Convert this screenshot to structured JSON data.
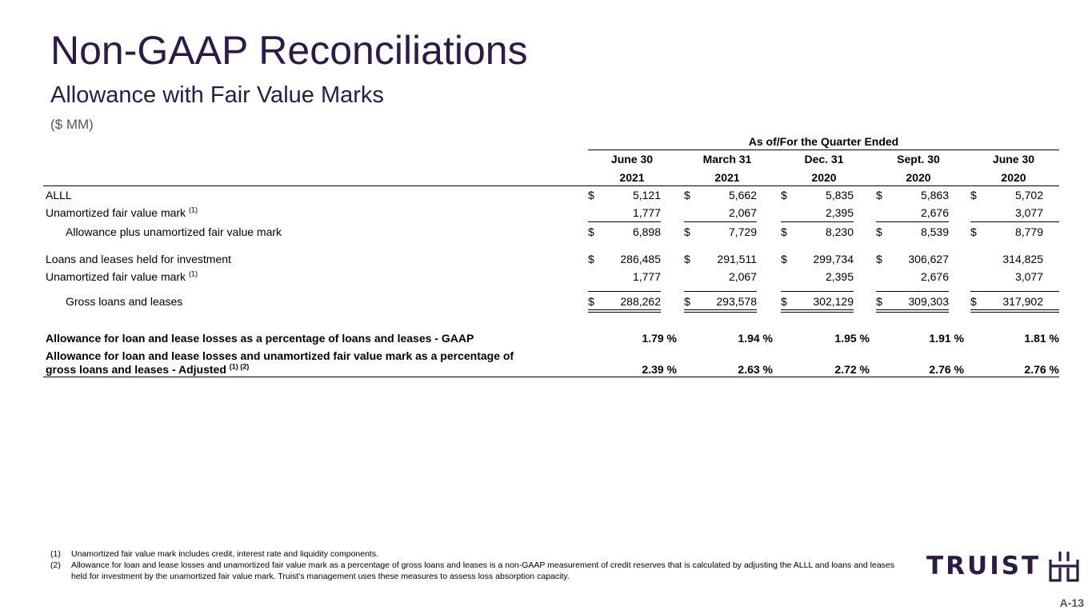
{
  "title": "Non-GAAP Reconciliations",
  "subtitle": "Allowance with Fair Value Marks",
  "units": "($ MM)",
  "table": {
    "group_header": "As of/For the Quarter Ended",
    "columns": [
      {
        "line1": "June 30",
        "line2": "2021"
      },
      {
        "line1": "March 31",
        "line2": "2021"
      },
      {
        "line1": "Dec. 31",
        "line2": "2020"
      },
      {
        "line1": "Sept. 30",
        "line2": "2020"
      },
      {
        "line1": "June 30",
        "line2": "2020"
      }
    ],
    "rows": [
      {
        "label": "ALLL",
        "values": [
          "5,121",
          "5,662",
          "5,835",
          "5,863",
          "5,702"
        ],
        "dollar": [
          true,
          true,
          true,
          true,
          true
        ]
      },
      {
        "label": "Unamortized fair value mark",
        "note": "(1)",
        "values": [
          "1,777",
          "2,067",
          "2,395",
          "2,676",
          "3,077"
        ],
        "dollar": [
          false,
          false,
          false,
          false,
          false
        ]
      },
      {
        "label": "Allowance plus unamortized fair value mark",
        "values": [
          "6,898",
          "7,729",
          "8,230",
          "8,539",
          "8,779"
        ],
        "dollar": [
          true,
          true,
          true,
          true,
          true
        ]
      },
      {
        "label": "Loans and leases held for investment",
        "values": [
          "286,485",
          "291,511",
          "299,734",
          "306,627",
          "314,825"
        ],
        "dollar": [
          true,
          true,
          true,
          true,
          false
        ]
      },
      {
        "label": "Unamortized fair value mark",
        "note": "(1)",
        "values": [
          "1,777",
          "2,067",
          "2,395",
          "2,676",
          "3,077"
        ],
        "dollar": [
          false,
          false,
          false,
          false,
          false
        ]
      },
      {
        "label": "Gross loans and leases",
        "values": [
          "288,262",
          "293,578",
          "302,129",
          "309,303",
          "317,902"
        ],
        "dollar": [
          true,
          true,
          true,
          true,
          true
        ]
      }
    ],
    "dollar_sign": "$",
    "ratio_rows": [
      {
        "label": "Allowance for loan and lease losses as a percentage of loans and leases - GAAP",
        "values": [
          "1.79 %",
          "1.94 %",
          "1.95 %",
          "1.91 %",
          "1.81 %"
        ]
      },
      {
        "label_line1": "Allowance for loan and lease losses and unamortized fair value mark as a percentage of",
        "label_line2": "gross loans and leases - Adjusted",
        "note": "(1) (2)",
        "values": [
          "2.39 %",
          "2.63 %",
          "2.72 %",
          "2.76 %",
          "2.76 %"
        ]
      }
    ]
  },
  "footnotes": [
    {
      "num": "(1)",
      "text": "Unamortized fair value mark includes credit, interest rate and liquidity components."
    },
    {
      "num": "(2)",
      "text": "Allowance for loan and lease losses and unamortized fair value mark as a percentage of gross loans and leases is a non-GAAP measurement of credit reserves that is calculated by adjusting the ALLL and loans and leases held for investment by the unamortized fair value mark. Truist's management uses these measures to assess loss absorption capacity."
    }
  ],
  "logo_text": "TRUIST",
  "logo_icon": "truist-mark-icon",
  "brand_color": "#2e1a47",
  "page_number": "A-13"
}
